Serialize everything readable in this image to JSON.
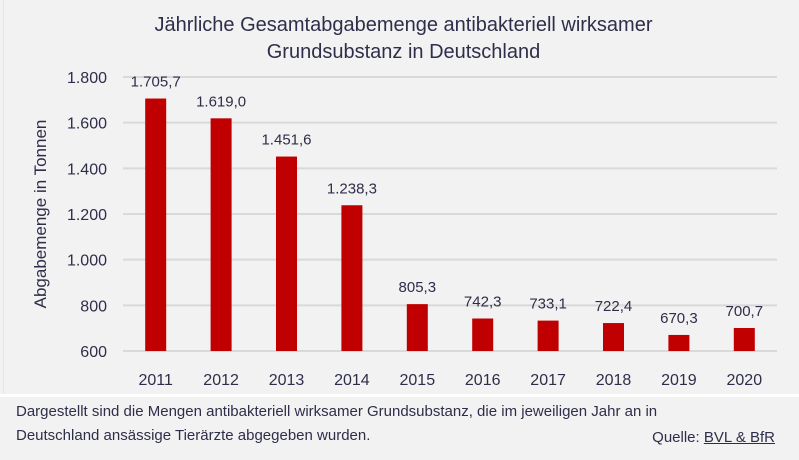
{
  "chart_data": {
    "type": "bar",
    "title_line1": "Jährliche Gesamtabgabemenge antibakteriell wirksamer",
    "title_line2": "Grundsubstanz in Deutschland",
    "xlabel": "",
    "ylabel": "Abgabemenge in Tonnen",
    "categories": [
      "2011",
      "2012",
      "2013",
      "2014",
      "2015",
      "2016",
      "2017",
      "2018",
      "2019",
      "2020"
    ],
    "values": [
      1705.7,
      1619.0,
      1451.6,
      1238.3,
      805.3,
      742.3,
      733.1,
      722.4,
      670.3,
      700.7
    ],
    "value_labels": [
      "1.705,7",
      "1.619,0",
      "1.451,6",
      "1.238,3",
      "805,3",
      "742,3",
      "733,1",
      "722,4",
      "670,3",
      "700,7"
    ],
    "ylim": [
      600,
      1800
    ],
    "yticks": [
      600,
      800,
      1000,
      1200,
      1400,
      1600,
      1800
    ],
    "ytick_labels": [
      "600",
      "800",
      "1.000",
      "1.200",
      "1.400",
      "1.600",
      "1.800"
    ],
    "grid": true,
    "legend": "none",
    "bar_color": "#c00000",
    "grid_color": "#d9d9d9"
  },
  "footer": {
    "line1": "Dargestellt sind die Mengen antibakteriell wirksamer Grundsubstanz, die im jeweiligen Jahr an in",
    "line2": "Deutschland ansässige Tierärzte abgegeben wurden.",
    "source_label": "Quelle: ",
    "source_link": "BVL & BfR"
  }
}
